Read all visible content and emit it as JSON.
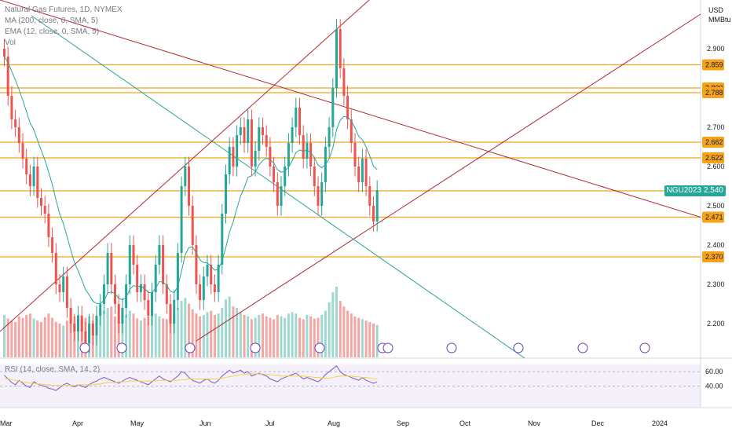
{
  "legend": {
    "title": "Natural Gas Futures, 1D, NYMEX",
    "ma": "MA (200, close, 0, SMA, 5)",
    "ema": "EMA (12, close, 0, SMA, 5)",
    "vol": "Vol"
  },
  "rsi_legend": "RSI (14, close, SMA, 14, 2)",
  "currency": "USD",
  "unit": "MMBtu",
  "symbol_tag": "NGU2023",
  "current_price": "2.540",
  "colors": {
    "up": "#26a69a",
    "down": "#ef5350",
    "level_line": "#f7a21b",
    "trend": "#b22833",
    "diag": "#26a69a",
    "ema": "#26a69a",
    "rsi": "#7e57c2",
    "rsi_ma": "#f5d442"
  },
  "chart_data": {
    "type": "candlestick",
    "title": "Natural Gas Futures, 1D, NYMEX",
    "price_axis_ticks": [
      "2.900",
      "2.800",
      "2.700",
      "2.600",
      "2.500",
      "2.400",
      "2.300",
      "2.200"
    ],
    "time_axis_labels": [
      "Mar",
      "Apr",
      "May",
      "Jun",
      "Jul",
      "Aug",
      "Sep",
      "Oct",
      "Nov",
      "Dec",
      "2024"
    ],
    "rsi_ticks": [
      "60.00",
      "40.00"
    ],
    "horizontal_levels": [
      {
        "price": 2.859,
        "label": "2.859"
      },
      {
        "price": 2.8,
        "label": "2.800"
      },
      {
        "price": 2.788,
        "label": "2.788"
      },
      {
        "price": 2.662,
        "label": "2.662"
      },
      {
        "price": 2.622,
        "label": "2.622"
      },
      {
        "price": 2.538,
        "label": "2.538"
      },
      {
        "price": 2.471,
        "label": "2.471"
      },
      {
        "price": 2.37,
        "label": "2.370"
      }
    ],
    "last_price": 2.54,
    "closes": [
      2.88,
      2.78,
      2.72,
      2.7,
      2.66,
      2.62,
      2.58,
      2.55,
      2.6,
      2.52,
      2.5,
      2.48,
      2.42,
      2.38,
      2.3,
      2.28,
      2.32,
      2.24,
      2.2,
      2.18,
      2.22,
      2.18,
      2.15,
      2.2,
      2.17,
      2.22,
      2.25,
      2.3,
      2.38,
      2.3,
      2.25,
      2.2,
      2.24,
      2.3,
      2.4,
      2.35,
      2.28,
      2.3,
      2.26,
      2.22,
      2.28,
      2.35,
      2.4,
      2.3,
      2.25,
      2.2,
      2.26,
      2.38,
      2.55,
      2.6,
      2.5,
      2.4,
      2.3,
      2.26,
      2.32,
      2.35,
      2.3,
      2.28,
      2.35,
      2.48,
      2.58,
      2.65,
      2.6,
      2.68,
      2.7,
      2.66,
      2.72,
      2.6,
      2.64,
      2.7,
      2.68,
      2.65,
      2.6,
      2.56,
      2.5,
      2.55,
      2.6,
      2.66,
      2.7,
      2.75,
      2.68,
      2.62,
      2.66,
      2.6,
      2.55,
      2.5,
      2.56,
      2.65,
      2.7,
      2.8,
      2.95,
      2.85,
      2.78,
      2.72,
      2.66,
      2.6,
      2.56,
      2.62,
      2.55,
      2.5,
      2.46,
      2.54
    ],
    "volumes": [
      60,
      55,
      52,
      50,
      58,
      56,
      60,
      62,
      55,
      52,
      50,
      57,
      62,
      56,
      50,
      48,
      45,
      52,
      55,
      58,
      60,
      54,
      56,
      58,
      52,
      50,
      60,
      66,
      70,
      72,
      58,
      50,
      56,
      60,
      66,
      62,
      55,
      52,
      56,
      58,
      60,
      62,
      58,
      55,
      54,
      52,
      58,
      70,
      80,
      84,
      76,
      68,
      62,
      58,
      60,
      64,
      66,
      60,
      62,
      70,
      82,
      86,
      72,
      70,
      64,
      60,
      58,
      54,
      56,
      60,
      62,
      58,
      56,
      54,
      60,
      58,
      56,
      62,
      64,
      62,
      56,
      54,
      60,
      58,
      55,
      56,
      60,
      66,
      78,
      92,
      100,
      80,
      72,
      66,
      62,
      58,
      56,
      54,
      52,
      50,
      48,
      46
    ],
    "rsi_values": [
      55,
      50,
      45,
      42,
      48,
      44,
      40,
      38,
      46,
      43,
      41,
      40,
      37,
      36,
      34,
      38,
      42,
      44,
      41,
      39,
      42,
      40,
      38,
      42,
      45,
      47,
      50,
      52,
      50,
      48,
      46,
      44,
      47,
      50,
      52,
      50,
      48,
      46,
      44,
      42,
      46,
      50,
      54,
      50,
      48,
      46,
      50,
      54,
      60,
      58,
      52,
      48,
      46,
      44,
      48,
      50,
      46,
      44,
      48,
      54,
      58,
      62,
      58,
      60,
      62,
      58,
      60,
      54,
      56,
      58,
      56,
      54,
      50,
      48,
      46,
      50,
      52,
      54,
      56,
      58,
      54,
      50,
      52,
      50,
      48,
      46,
      50,
      56,
      60,
      64,
      68,
      60,
      56,
      54,
      52,
      50,
      48,
      52,
      48,
      46,
      44,
      46
    ],
    "rsi_ma_values": [
      50,
      50,
      49,
      48,
      47,
      46,
      45,
      44,
      44,
      43,
      43,
      42,
      42,
      41,
      41,
      41,
      41,
      41,
      41,
      41,
      42,
      42,
      42,
      42,
      42,
      43,
      43,
      44,
      45,
      45,
      45,
      46,
      46,
      46,
      47,
      47,
      47,
      47,
      47,
      47,
      47,
      47,
      48,
      48,
      48,
      48,
      48,
      48,
      49,
      49,
      50,
      50,
      50,
      50,
      50,
      50,
      50,
      50,
      50,
      51,
      52,
      53,
      54,
      55,
      56,
      56,
      57,
      57,
      57,
      57,
      57,
      56,
      56,
      55,
      55,
      54,
      54,
      54,
      54,
      54,
      54,
      54,
      53,
      53,
      52,
      52,
      51,
      51,
      51,
      52,
      53,
      54,
      54,
      54,
      54,
      53,
      53,
      52,
      52,
      51,
      50,
      50
    ]
  }
}
